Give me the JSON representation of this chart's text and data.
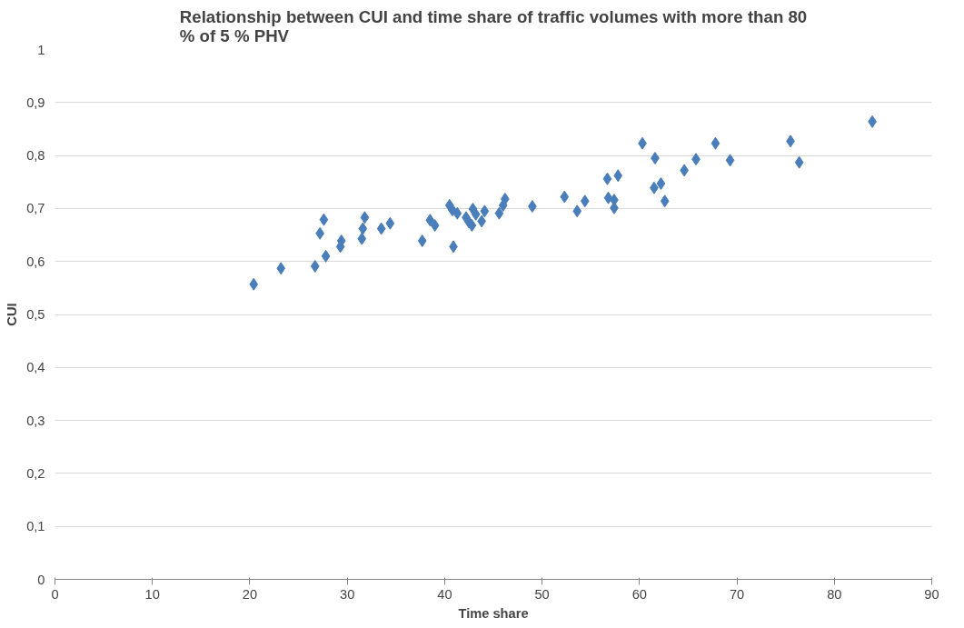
{
  "chart_data": {
    "type": "scatter",
    "title": "Relationship between CUI and time share of traffic volumes with more than 80 % of 5 % PHV",
    "xlabel": "Time share",
    "ylabel": "CUI",
    "xlim": [
      0,
      90
    ],
    "xticks": [
      0,
      10,
      20,
      30,
      40,
      50,
      60,
      70,
      80,
      90
    ],
    "ylim": [
      0,
      1
    ],
    "yticks": [
      0,
      {
        "value": 0.1,
        "label": "0,1"
      },
      {
        "value": 0.2,
        "label": "0,2"
      },
      {
        "value": 0.3,
        "label": "0,3"
      },
      {
        "value": 0.4,
        "label": "0,4"
      },
      {
        "value": 0.5,
        "label": "0,5"
      },
      {
        "value": 0.6,
        "label": "0,6"
      },
      {
        "value": 0.7,
        "label": "0,7"
      },
      {
        "value": 0.8,
        "label": "0,8"
      },
      {
        "value": 0.9,
        "label": "0,9"
      },
      1
    ],
    "grid": "y",
    "marker": "diamond",
    "series": [
      {
        "color": "#4a7ebb",
        "x": [
          20.4,
          23.2,
          26.7,
          27.2,
          27.6,
          27.8,
          29.3,
          29.4,
          31.5,
          31.6,
          31.8,
          33.5,
          34.4,
          37.7,
          38.5,
          39.0,
          40.5,
          40.8,
          40.9,
          41.3,
          42.2,
          42.5,
          42.8,
          42.9,
          43.2,
          43.8,
          44.1,
          45.6,
          46.0,
          46.2,
          49.0,
          52.3,
          53.6,
          54.4,
          56.7,
          56.8,
          57.4,
          57.4,
          57.8,
          60.3,
          61.6,
          61.5,
          62.2,
          62.6,
          64.6,
          65.8,
          67.8,
          69.3,
          75.5,
          76.4,
          83.9
        ],
        "values": [
          0.557,
          0.587,
          0.591,
          0.653,
          0.679,
          0.61,
          0.628,
          0.639,
          0.643,
          0.662,
          0.683,
          0.662,
          0.672,
          0.639,
          0.678,
          0.668,
          0.706,
          0.697,
          0.628,
          0.691,
          0.683,
          0.674,
          0.668,
          0.699,
          0.689,
          0.676,
          0.695,
          0.691,
          0.706,
          0.718,
          0.704,
          0.722,
          0.695,
          0.714,
          0.756,
          0.72,
          0.716,
          0.701,
          0.762,
          0.823,
          0.795,
          0.739,
          0.747,
          0.714,
          0.772,
          0.793,
          0.823,
          0.791,
          0.827,
          0.787,
          0.864
        ]
      }
    ]
  }
}
